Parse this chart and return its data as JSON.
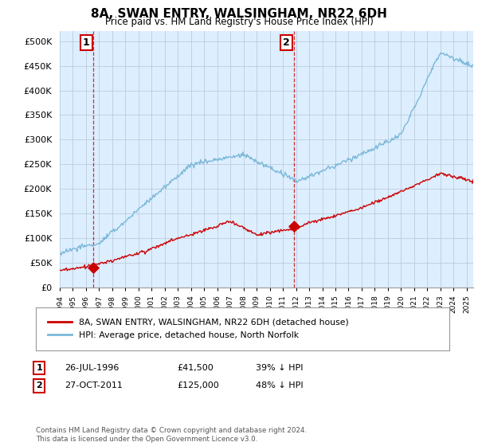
{
  "title": "8A, SWAN ENTRY, WALSINGHAM, NR22 6DH",
  "subtitle": "Price paid vs. HM Land Registry's House Price Index (HPI)",
  "legend_line1": "8A, SWAN ENTRY, WALSINGHAM, NR22 6DH (detached house)",
  "legend_line2": "HPI: Average price, detached house, North Norfolk",
  "sale1_label": "1",
  "sale1_date": "26-JUL-1996",
  "sale1_price": "£41,500",
  "sale1_hpi": "39% ↓ HPI",
  "sale1_year": 1996.57,
  "sale1_value": 41500,
  "sale2_label": "2",
  "sale2_date": "27-OCT-2011",
  "sale2_price": "£125,000",
  "sale2_hpi": "48% ↓ HPI",
  "sale2_year": 2011.82,
  "sale2_value": 125000,
  "hpi_color": "#7ab8d8",
  "price_color": "#cc0000",
  "marker_color": "#cc0000",
  "annotation_box_color": "#cc0000",
  "grid_color": "#bbccdd",
  "plot_bg_color": "#ddeeff",
  "ylim": [
    0,
    520000
  ],
  "yticks": [
    0,
    50000,
    100000,
    150000,
    200000,
    250000,
    300000,
    350000,
    400000,
    450000,
    500000
  ],
  "xmin": 1994,
  "xmax": 2025.5,
  "footer": "Contains HM Land Registry data © Crown copyright and database right 2024.\nThis data is licensed under the Open Government Licence v3.0.",
  "background_color": "#ffffff"
}
